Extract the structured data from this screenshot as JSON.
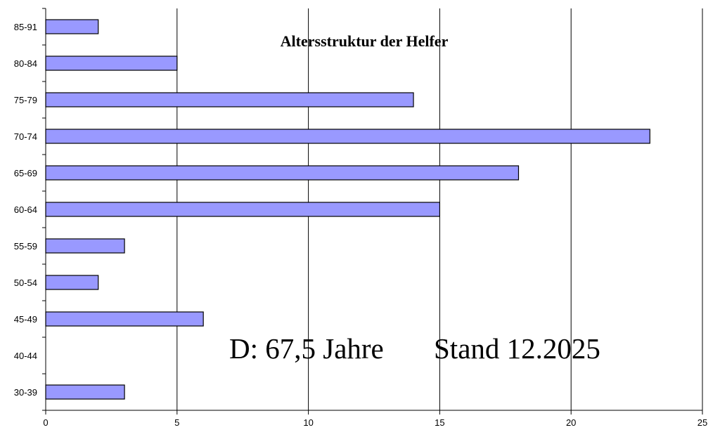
{
  "chart_data": {
    "type": "bar",
    "orientation": "horizontal",
    "title": "Altersstruktur der Helfer",
    "categories": [
      "30-39",
      "40-44",
      "45-49",
      "50-54",
      "55-59",
      "60-64",
      "65-69",
      "70-74",
      "75-79",
      "80-84",
      "85-91"
    ],
    "values": [
      3,
      0,
      6,
      2,
      3,
      15,
      18,
      23,
      14,
      5,
      2
    ],
    "xticks": [
      "0",
      "5",
      "10",
      "15",
      "20",
      "25"
    ],
    "xlim": [
      0,
      25
    ],
    "grid": true,
    "legend": "none",
    "bar_color": "#9999ff",
    "annotations": [
      "D: 67,5 Jahre",
      "Stand 12.2025"
    ]
  }
}
